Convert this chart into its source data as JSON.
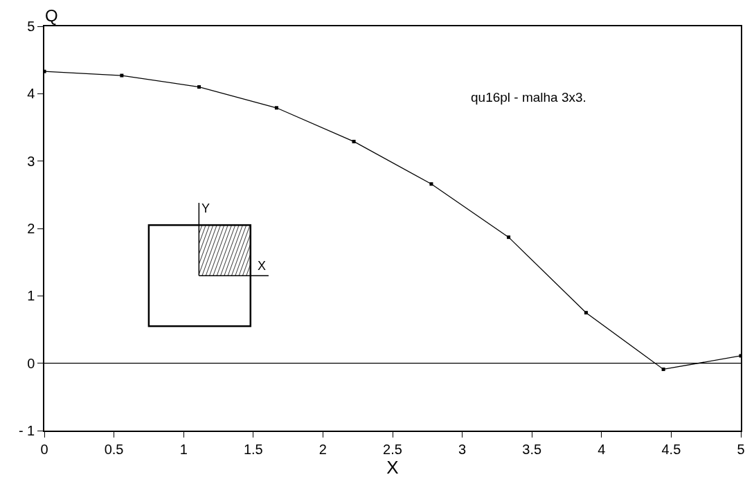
{
  "chart_data": {
    "type": "line",
    "xlabel": "X",
    "ylabel": "Q",
    "x": [
      0,
      0.556,
      1.111,
      1.667,
      2.222,
      2.778,
      3.333,
      3.889,
      4.444,
      5
    ],
    "series": [
      {
        "color": "#000000",
        "values": [
          4.33,
          4.27,
          4.1,
          3.79,
          3.29,
          2.66,
          1.87,
          0.75,
          -0.09,
          0.11
        ]
      }
    ],
    "xlim": [
      0,
      5
    ],
    "xticks": [
      0,
      0.5,
      1,
      1.5,
      2,
      2.5,
      3,
      3.5,
      4,
      4.5,
      5
    ],
    "ylim": [
      -1,
      5
    ],
    "yticks": [
      -1,
      0,
      1,
      2,
      3,
      4,
      5
    ],
    "ref_lines": [
      {
        "axis": "y",
        "value": 0,
        "color": "#000000"
      }
    ],
    "annotations": [
      "qu16pl - malha 3x3.",
      "Y",
      "X"
    ],
    "grid": false,
    "marker": "square",
    "line_style": "solid"
  }
}
